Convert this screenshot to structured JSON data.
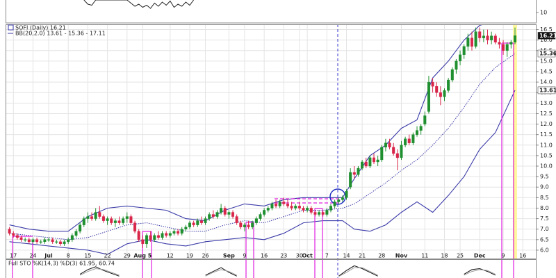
{
  "chart_data": {
    "type": "candlestick",
    "legend_price": "SOFI (Daily) 16.21",
    "legend_bb": "BB(20,2.0) 13.61 - 15.36 - 17.11",
    "legend_sto": "Full STO %K(14,3) %D(3) 61.95, 60.74",
    "last_close": 16.21,
    "bb_tags": [
      15.36,
      13.61
    ],
    "xlim": [
      -1,
      134.5
    ],
    "ylim": [
      5.6,
      16.75
    ],
    "grid": true,
    "up_color": "#1f8f2f",
    "down_color": "#d8264a",
    "band_color": "#3a3aa8",
    "xticks": [
      {
        "value": 1,
        "label": "17"
      },
      {
        "value": 6,
        "label": "24"
      },
      {
        "value": 10,
        "label": "Jul"
      },
      {
        "value": 15,
        "label": "8"
      },
      {
        "value": 20,
        "label": "15"
      },
      {
        "value": 25,
        "label": "22"
      },
      {
        "value": 30,
        "label": "29"
      },
      {
        "value": 34,
        "label": "Aug 5"
      },
      {
        "value": 41,
        "label": "12"
      },
      {
        "value": 46,
        "label": "19"
      },
      {
        "value": 50,
        "label": "26"
      },
      {
        "value": 56,
        "label": "Sep"
      },
      {
        "value": 60,
        "label": "9"
      },
      {
        "value": 65,
        "label": "16"
      },
      {
        "value": 70,
        "label": "23"
      },
      {
        "value": 74,
        "label": "30"
      },
      {
        "value": 76,
        "label": "Oct"
      },
      {
        "value": 81,
        "label": "7"
      },
      {
        "value": 86,
        "label": "14"
      },
      {
        "value": 90,
        "label": "21"
      },
      {
        "value": 95,
        "label": "28"
      },
      {
        "value": 100,
        "label": "Nov"
      },
      {
        "value": 106,
        "label": "11"
      },
      {
        "value": 111,
        "label": "18"
      },
      {
        "value": 115,
        "label": "25"
      },
      {
        "value": 120,
        "label": "Dec"
      },
      {
        "value": 126,
        "label": "9"
      },
      {
        "value": 131,
        "label": "16"
      }
    ],
    "yticks": [
      {
        "value": 6,
        "label": "6.0"
      },
      6.5,
      {
        "value": 7,
        "label": "7.0"
      },
      7.5,
      {
        "value": 8,
        "label": "8.0"
      },
      8.5,
      {
        "value": 9,
        "label": "9.0"
      },
      9.5,
      {
        "value": 10,
        "label": "10.0"
      },
      10.5,
      {
        "value": 11,
        "label": "11.0"
      },
      11.5,
      {
        "value": 12,
        "label": "12.0"
      },
      12.5,
      {
        "value": 13,
        "label": "13.0"
      },
      13.5,
      {
        "value": 14,
        "label": "14.0"
      },
      14.5,
      {
        "value": 15,
        "label": "15.0"
      },
      15.5,
      {
        "value": 16,
        "label": "16.0"
      },
      16.5
    ],
    "candles": [
      [
        7.0,
        7.1,
        6.7,
        6.8
      ],
      [
        6.8,
        6.9,
        6.6,
        6.7
      ],
      [
        6.7,
        6.8,
        6.5,
        6.6
      ],
      [
        6.6,
        6.7,
        6.4,
        6.5
      ],
      [
        6.5,
        6.6,
        6.4,
        6.5
      ],
      [
        6.5,
        6.6,
        6.3,
        6.4
      ],
      [
        6.4,
        6.6,
        6.3,
        6.5
      ],
      [
        6.5,
        6.6,
        6.3,
        6.4
      ],
      [
        6.4,
        6.5,
        6.3,
        6.4
      ],
      [
        6.4,
        6.6,
        6.3,
        6.5
      ],
      [
        6.5,
        6.6,
        6.4,
        6.5
      ],
      [
        6.5,
        6.6,
        6.3,
        6.4
      ],
      [
        6.4,
        6.5,
        6.3,
        6.4
      ],
      [
        6.4,
        6.5,
        6.2,
        6.3
      ],
      [
        6.3,
        6.5,
        6.2,
        6.4
      ],
      [
        6.4,
        6.6,
        6.3,
        6.5
      ],
      [
        6.5,
        6.8,
        6.4,
        6.7
      ],
      [
        6.7,
        7.0,
        6.6,
        6.9
      ],
      [
        6.9,
        7.3,
        6.8,
        7.2
      ],
      [
        7.2,
        7.6,
        7.1,
        7.5
      ],
      [
        7.5,
        7.8,
        7.3,
        7.6
      ],
      [
        7.6,
        7.8,
        7.4,
        7.5
      ],
      [
        7.5,
        8.0,
        7.4,
        7.8
      ],
      [
        7.8,
        8.1,
        7.5,
        7.6
      ],
      [
        7.6,
        7.7,
        7.3,
        7.4
      ],
      [
        7.4,
        7.6,
        7.2,
        7.5
      ],
      [
        7.5,
        7.6,
        7.2,
        7.3
      ],
      [
        7.3,
        7.5,
        7.1,
        7.4
      ],
      [
        7.4,
        7.6,
        7.2,
        7.3
      ],
      [
        7.3,
        7.6,
        7.2,
        7.5
      ],
      [
        7.5,
        7.8,
        7.3,
        7.6
      ],
      [
        7.6,
        7.7,
        7.2,
        7.3
      ],
      [
        7.3,
        7.4,
        6.8,
        6.9
      ],
      [
        6.9,
        7.0,
        6.4,
        6.5
      ],
      [
        6.5,
        6.7,
        6.1,
        6.3
      ],
      [
        6.3,
        6.8,
        6.1,
        6.7
      ],
      [
        6.7,
        6.9,
        6.4,
        6.5
      ],
      [
        6.5,
        6.8,
        6.4,
        6.7
      ],
      [
        6.7,
        6.9,
        6.5,
        6.6
      ],
      [
        6.6,
        6.9,
        6.5,
        6.8
      ],
      [
        6.8,
        6.9,
        6.6,
        6.7
      ],
      [
        6.7,
        6.9,
        6.6,
        6.8
      ],
      [
        6.8,
        7.0,
        6.7,
        6.9
      ],
      [
        6.9,
        7.0,
        6.7,
        6.8
      ],
      [
        6.8,
        7.1,
        6.7,
        7.0
      ],
      [
        7.0,
        7.2,
        6.9,
        7.1
      ],
      [
        7.1,
        7.4,
        7.0,
        7.3
      ],
      [
        7.3,
        7.4,
        7.1,
        7.2
      ],
      [
        7.2,
        7.5,
        7.1,
        7.4
      ],
      [
        7.4,
        7.6,
        7.2,
        7.3
      ],
      [
        7.3,
        7.6,
        7.2,
        7.5
      ],
      [
        7.5,
        7.8,
        7.4,
        7.7
      ],
      [
        7.7,
        7.9,
        7.5,
        7.6
      ],
      [
        7.6,
        7.9,
        7.5,
        7.8
      ],
      [
        7.8,
        8.2,
        7.7,
        8.0
      ],
      [
        8.0,
        8.1,
        7.6,
        7.7
      ],
      [
        7.7,
        7.9,
        7.5,
        7.8
      ],
      [
        7.8,
        7.9,
        7.5,
        7.6
      ],
      [
        7.6,
        7.7,
        7.2,
        7.3
      ],
      [
        7.3,
        7.4,
        7.0,
        7.1
      ],
      [
        7.1,
        7.3,
        6.9,
        7.2
      ],
      [
        7.2,
        7.4,
        7.0,
        7.1
      ],
      [
        7.1,
        7.4,
        7.0,
        7.3
      ],
      [
        7.3,
        7.6,
        7.2,
        7.5
      ],
      [
        7.5,
        7.8,
        7.4,
        7.7
      ],
      [
        7.7,
        8.0,
        7.6,
        7.9
      ],
      [
        7.9,
        8.1,
        7.8,
        8.0
      ],
      [
        8.0,
        8.3,
        7.9,
        8.2
      ],
      [
        8.2,
        8.4,
        8.0,
        8.1
      ],
      [
        8.1,
        8.4,
        8.0,
        8.3
      ],
      [
        8.3,
        8.5,
        8.1,
        8.2
      ],
      [
        8.2,
        8.4,
        8.0,
        8.1
      ],
      [
        8.1,
        8.3,
        7.9,
        8.0
      ],
      [
        8.0,
        8.2,
        7.9,
        8.1
      ],
      [
        8.1,
        8.3,
        7.9,
        8.0
      ],
      [
        8.0,
        8.1,
        7.8,
        7.9
      ],
      [
        7.9,
        8.1,
        7.8,
        8.0
      ],
      [
        8.0,
        8.1,
        7.7,
        7.8
      ],
      [
        7.8,
        7.9,
        7.6,
        7.7
      ],
      [
        7.7,
        7.9,
        7.6,
        7.8
      ],
      [
        7.8,
        7.9,
        7.6,
        7.7
      ],
      [
        7.7,
        8.0,
        7.6,
        7.9
      ],
      [
        7.9,
        8.2,
        7.8,
        8.1
      ],
      [
        8.1,
        8.4,
        8.0,
        8.3
      ],
      [
        8.3,
        8.5,
        8.2,
        8.4
      ],
      [
        8.4,
        8.6,
        8.3,
        8.5
      ],
      [
        8.5,
        8.9,
        8.4,
        8.8
      ],
      [
        9.0,
        9.9,
        8.9,
        9.7
      ],
      [
        9.7,
        10.0,
        9.4,
        9.6
      ],
      [
        9.6,
        10.0,
        9.5,
        9.9
      ],
      [
        9.9,
        10.3,
        9.8,
        10.2
      ],
      [
        10.2,
        10.4,
        9.9,
        10.0
      ],
      [
        10.0,
        10.5,
        9.9,
        10.4
      ],
      [
        10.4,
        10.6,
        10.1,
        10.2
      ],
      [
        10.2,
        10.5,
        10.0,
        10.3
      ],
      [
        10.3,
        11.0,
        10.2,
        10.9
      ],
      [
        10.9,
        11.3,
        10.7,
        11.1
      ],
      [
        11.1,
        11.3,
        10.8,
        10.9
      ],
      [
        10.9,
        11.1,
        10.5,
        10.6
      ],
      [
        10.6,
        10.8,
        9.8,
        10.4
      ],
      [
        10.4,
        11.2,
        10.3,
        11.0
      ],
      [
        11.0,
        11.4,
        10.9,
        11.3
      ],
      [
        11.3,
        11.5,
        11.0,
        11.1
      ],
      [
        11.1,
        11.6,
        11.0,
        11.5
      ],
      [
        11.5,
        11.9,
        11.4,
        11.7
      ],
      [
        11.7,
        12.0,
        11.5,
        11.9
      ],
      [
        12.0,
        12.6,
        11.9,
        12.4
      ],
      [
        12.6,
        14.3,
        12.5,
        14.0
      ],
      [
        14.0,
        14.2,
        13.5,
        13.8
      ],
      [
        13.8,
        14.0,
        13.3,
        13.5
      ],
      [
        13.5,
        13.8,
        12.9,
        13.3
      ],
      [
        13.3,
        13.7,
        13.1,
        13.6
      ],
      [
        13.6,
        14.2,
        13.5,
        14.1
      ],
      [
        14.1,
        14.7,
        14.0,
        14.6
      ],
      [
        14.6,
        15.1,
        14.4,
        15.0
      ],
      [
        15.0,
        15.5,
        14.8,
        15.3
      ],
      [
        15.3,
        15.8,
        15.1,
        15.7
      ],
      [
        15.7,
        16.3,
        15.5,
        16.1
      ],
      [
        16.1,
        16.4,
        15.5,
        15.7
      ],
      [
        15.7,
        16.6,
        15.6,
        16.4
      ],
      [
        16.4,
        16.6,
        15.9,
        16.1
      ],
      [
        16.1,
        16.5,
        15.9,
        16.2
      ],
      [
        16.2,
        16.5,
        15.8,
        16.0
      ],
      [
        16.0,
        16.4,
        15.8,
        16.2
      ],
      [
        16.2,
        16.3,
        15.8,
        15.9
      ],
      [
        15.9,
        16.1,
        15.6,
        15.8
      ],
      [
        15.8,
        16.0,
        15.3,
        15.5
      ],
      [
        15.5,
        15.9,
        15.2,
        15.8
      ],
      [
        15.8,
        16.0,
        15.6,
        15.9
      ],
      [
        15.9,
        16.6,
        15.8,
        16.21
      ]
    ],
    "bands": {
      "x": [
        0,
        5,
        10,
        15,
        20,
        25,
        30,
        35,
        40,
        45,
        50,
        55,
        60,
        65,
        70,
        75,
        80,
        85,
        88,
        92,
        96,
        100,
        104,
        108,
        112,
        116,
        120,
        124,
        129
      ],
      "upper": [
        7.2,
        7.0,
        6.9,
        6.9,
        7.6,
        8.0,
        8.1,
        8.0,
        7.9,
        7.5,
        7.4,
        7.9,
        8.2,
        8.1,
        8.4,
        8.5,
        8.5,
        8.5,
        9.4,
        10.5,
        11.0,
        11.8,
        12.2,
        14.2,
        15.0,
        16.0,
        16.7,
        16.9,
        17.11
      ],
      "middle": [
        6.8,
        6.7,
        6.6,
        6.5,
        6.6,
        6.9,
        7.2,
        7.3,
        7.1,
        6.9,
        6.9,
        7.2,
        7.4,
        7.3,
        7.6,
        7.9,
        7.9,
        8.0,
        8.2,
        8.7,
        9.2,
        9.8,
        10.3,
        11.0,
        11.8,
        12.8,
        13.9,
        14.7,
        15.36
      ],
      "lower": [
        6.4,
        6.3,
        6.2,
        6.1,
        6.0,
        5.8,
        6.3,
        6.5,
        6.3,
        6.2,
        6.4,
        6.5,
        6.6,
        6.5,
        6.8,
        7.3,
        7.4,
        7.4,
        7.0,
        6.9,
        7.2,
        7.8,
        8.3,
        7.8,
        8.6,
        9.5,
        10.8,
        11.6,
        13.61
      ]
    },
    "top_panel": {
      "ylim": [
        0,
        22
      ],
      "yticks": [
        10
      ],
      "x": [
        19,
        20,
        21,
        22,
        30,
        31,
        32,
        33,
        34,
        35,
        36,
        37,
        38,
        39,
        40,
        41,
        42,
        43,
        44,
        45,
        46,
        47
      ],
      "values": [
        22,
        18,
        17,
        22,
        22,
        19,
        16,
        18,
        15,
        17,
        14,
        19,
        16,
        20,
        17,
        21,
        15,
        18,
        16,
        20,
        17,
        22
      ]
    },
    "sto_panel": {
      "ylim": [
        0,
        100
      ],
      "x": [
        18,
        20,
        22,
        24,
        26,
        28,
        50,
        52,
        54,
        56,
        58,
        84,
        86,
        88,
        90,
        92,
        94,
        116,
        118,
        120,
        122,
        124
      ],
      "k": [
        20,
        45,
        60,
        40,
        25,
        10,
        15,
        35,
        55,
        30,
        10,
        10,
        40,
        65,
        50,
        30,
        10,
        20,
        45,
        50,
        35,
        15
      ],
      "d": [
        15,
        35,
        50,
        45,
        30,
        15,
        10,
        30,
        45,
        35,
        15,
        8,
        30,
        55,
        55,
        35,
        15,
        15,
        35,
        45,
        40,
        20
      ]
    }
  }
}
